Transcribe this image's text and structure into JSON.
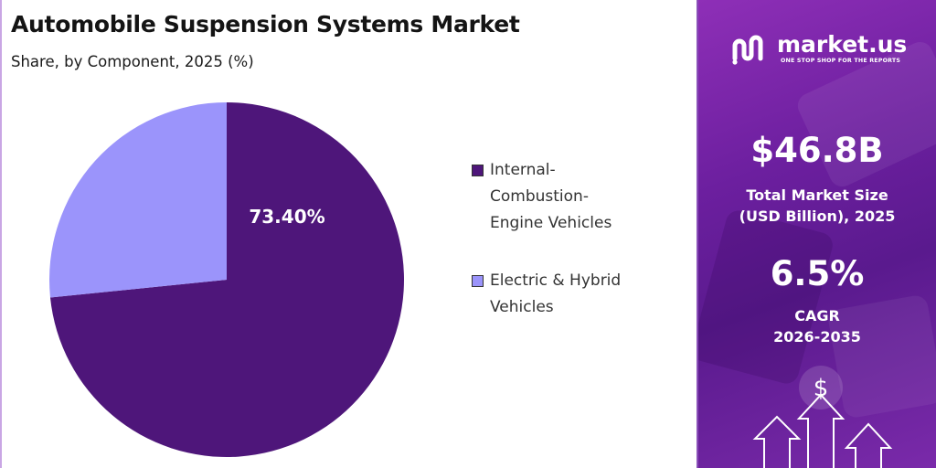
{
  "title": "Automobile Suspension Systems Market",
  "subtitle": "Share, by Component, 2025 (%)",
  "chart_data": {
    "type": "pie",
    "title": "Automobile Suspension Systems Market",
    "subtitle": "Share, by Component, 2025 (%)",
    "categories": [
      "Internal-Combustion-Engine Vehicles",
      "Electric & Hybrid Vehicles"
    ],
    "values": [
      73.4,
      26.6
    ],
    "colors": [
      "#4e167a",
      "#9b94fb"
    ],
    "data_labels": [
      "73.40%",
      ""
    ],
    "start_angle_deg": 0,
    "direction": "clockwise",
    "legend_position": "right"
  },
  "legend": {
    "items": [
      {
        "lines": [
          "Internal-",
          "Combustion-",
          "Engine Vehicles"
        ],
        "color": "#4e167a"
      },
      {
        "lines": [
          "Electric & Hybrid",
          "Vehicles"
        ],
        "color": "#9b94fb"
      }
    ]
  },
  "sidebar": {
    "brand": "market.us",
    "tagline": "ONE STOP SHOP FOR THE REPORTS",
    "market_size_value": "$46.8B",
    "market_size_label_1": "Total Market Size",
    "market_size_label_2": "(USD Billion), 2025",
    "cagr_value": "6.5%",
    "cagr_label_1": "CAGR",
    "cagr_label_2": "2026-2035",
    "currency_symbol": "$",
    "icons": [
      "market-us-logo-icon",
      "growth-arrows-icon"
    ]
  }
}
